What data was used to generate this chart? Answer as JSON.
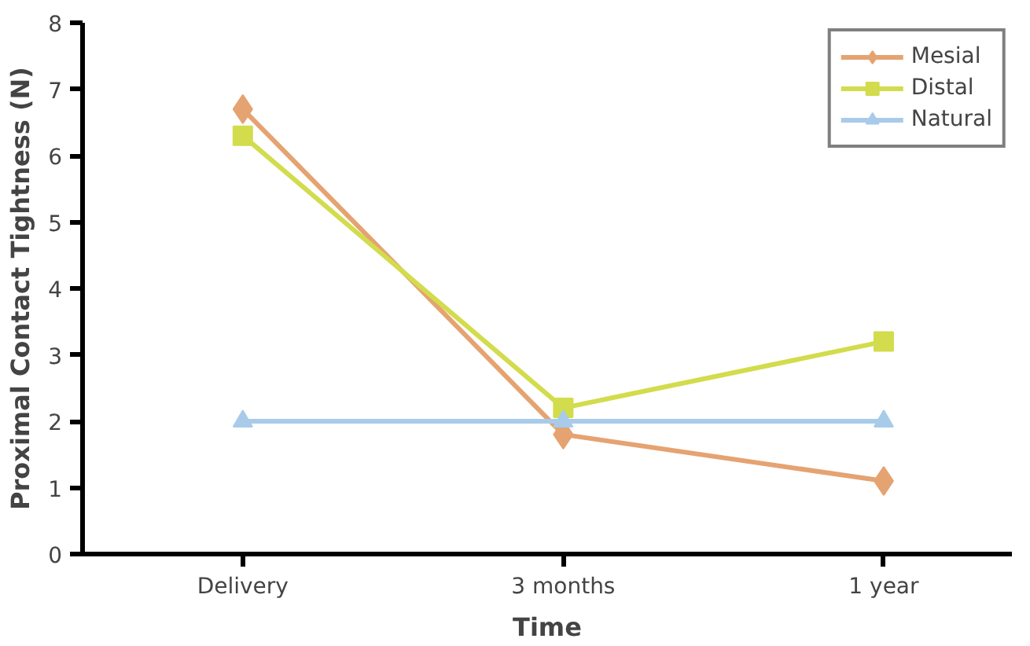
{
  "chart_data": {
    "type": "line",
    "xlabel": "Time",
    "ylabel": "Proximal Contact Tightness (N)",
    "categories": [
      "Delivery",
      "3 months",
      "1 year"
    ],
    "series": [
      {
        "name": "Mesial",
        "color": "#e5a371",
        "marker": "diamond",
        "values": [
          6.7,
          1.8,
          1.1
        ]
      },
      {
        "name": "Distal",
        "color": "#d2dc4c",
        "marker": "square",
        "values": [
          6.3,
          2.2,
          3.2
        ]
      },
      {
        "name": "Natural",
        "color": "#a8cbea",
        "marker": "triangle",
        "values": [
          2,
          2,
          2
        ]
      }
    ],
    "ylim": [
      0,
      8
    ],
    "yticks": [
      0,
      1,
      2,
      3,
      4,
      5,
      6,
      7,
      8
    ],
    "grid": false,
    "legend": "top right"
  }
}
